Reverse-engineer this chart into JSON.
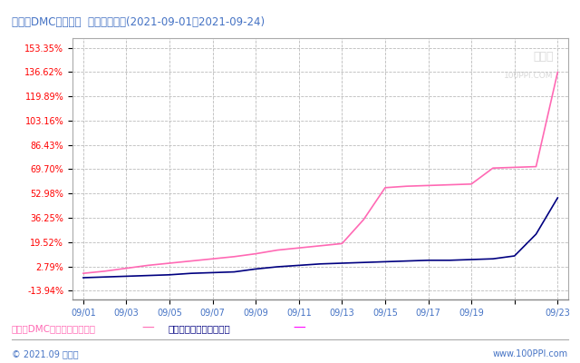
{
  "title": "有机硅DMC－金属硅  价格趋势比较(2021-09-01－2021-09-24)",
  "title_color": "#4472C4",
  "background_color": "#FFFFFF",
  "plot_bg_color": "#FFFFFF",
  "yticks": [
    -13.94,
    2.79,
    19.52,
    36.25,
    52.98,
    69.7,
    86.43,
    103.16,
    119.89,
    136.62,
    153.35
  ],
  "ylim": [
    -20,
    160
  ],
  "xlabels": [
    "09/01",
    "09/03",
    "09/05",
    "09/07",
    "09/09",
    "09/11",
    "09/13",
    "09/15",
    "09/17",
    "09/19",
    "",
    "09/23"
  ],
  "xlabel_color": "#4472C4",
  "grid_color": "#BBBBBB",
  "footer_left": "© 2021.09 生意社",
  "footer_right": "www.100PPI.com",
  "footer_color": "#4472C4",
  "legend_dmc": "有机琉DMC现货价格变化幅度",
  "legend_metal": "金属琉现货价格变化幅度",
  "dmc_color": "#FF69B4",
  "metal_color": "#000080",
  "legend_dmc_color": "#FF69B4",
  "legend_metal_color": "#FF00FF",
  "dmc_data_y": [
    -2.0,
    -0.5,
    1.5,
    3.5,
    5.0,
    6.5,
    8.0,
    9.5,
    11.5,
    14.0,
    15.5,
    17.0,
    18.5,
    35.0,
    57.0,
    58.0,
    58.5,
    59.0,
    59.5,
    70.5,
    71.0,
    71.5,
    136.5
  ],
  "metal_data_y": [
    -5.0,
    -4.5,
    -4.0,
    -3.5,
    -3.0,
    -2.0,
    -1.5,
    -1.0,
    1.0,
    2.5,
    3.5,
    4.5,
    5.0,
    5.5,
    6.0,
    6.5,
    7.0,
    7.0,
    7.5,
    8.0,
    10.0,
    25.0,
    50.0
  ]
}
